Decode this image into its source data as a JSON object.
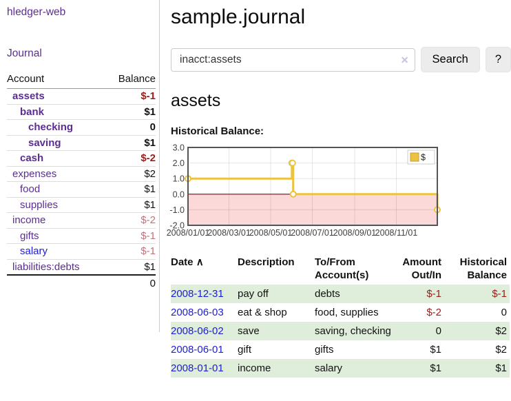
{
  "app": {
    "title": "hledger-web"
  },
  "sidebar": {
    "journal_link": "Journal",
    "table": {
      "headers": {
        "account": "Account",
        "balance": "Balance"
      },
      "accounts": [
        {
          "name": "assets",
          "indent": 1,
          "bold": true,
          "balance": "$-1",
          "balance_style": "neg"
        },
        {
          "name": "bank",
          "indent": 2,
          "bold": true,
          "balance": "$1",
          "balance_style": "plain"
        },
        {
          "name": "checking",
          "indent": 3,
          "bold": true,
          "balance": "0",
          "balance_style": "plain"
        },
        {
          "name": "saving",
          "indent": 3,
          "bold": true,
          "balance": "$1",
          "balance_style": "plain"
        },
        {
          "name": "cash",
          "indent": 2,
          "bold": true,
          "balance": "$-2",
          "balance_style": "neg"
        },
        {
          "name": "expenses",
          "indent": 1,
          "bold": false,
          "balance": "$2",
          "balance_style": "plain"
        },
        {
          "name": "food",
          "indent": 2,
          "bold": false,
          "balance": "$1",
          "balance_style": "plain"
        },
        {
          "name": "supplies",
          "indent": 2,
          "bold": false,
          "balance": "$1",
          "balance_style": "plain"
        },
        {
          "name": "income",
          "indent": 1,
          "bold": false,
          "balance": "$-2",
          "balance_style": "softneg"
        },
        {
          "name": "gifts",
          "indent": 2,
          "bold": false,
          "balance": "$-1",
          "balance_style": "softneg"
        },
        {
          "name": "salary",
          "indent": 2,
          "bold": false,
          "blue": true,
          "balance": "$-1",
          "balance_style": "softneg"
        },
        {
          "name": "liabilities:debts",
          "indent": 1,
          "bold": false,
          "balance": "$1",
          "balance_style": "plain"
        }
      ],
      "total": "0"
    }
  },
  "main": {
    "title": "sample.journal",
    "search": {
      "value": "inacct:assets",
      "clear_icon": "✕",
      "button": "Search",
      "help_button": "?"
    },
    "account_heading": "assets",
    "chart_heading": "Historical Balance:"
  },
  "chart_data": {
    "type": "line",
    "step": true,
    "title": "Historical Balance:",
    "series": [
      {
        "name": "$",
        "color": "#edc240",
        "points": [
          [
            "2008-01-01",
            1
          ],
          [
            "2008-06-01",
            2
          ],
          [
            "2008-06-02",
            2
          ],
          [
            "2008-06-03",
            0
          ],
          [
            "2008-12-31",
            -1
          ]
        ]
      }
    ],
    "x_ticks": [
      "2008/01/01",
      "2008/03/01",
      "2008/05/01",
      "2008/07/01",
      "2008/09/01",
      "2008/11/01"
    ],
    "y_ticks": [
      3.0,
      2.0,
      1.0,
      0.0,
      -1.0,
      -2.0
    ],
    "xlim": [
      "2008-01-01",
      "2008-12-31"
    ],
    "ylim": [
      -2,
      3
    ],
    "grid": true,
    "legend_position": "top-right",
    "negative_region_color": "#fbd9d9",
    "zero_line_color": "#8b0000",
    "border_color": "#545454",
    "axis_text_color": "#3f3f3f"
  },
  "register": {
    "headers": {
      "date": "Date",
      "sort_icon": "∧",
      "description": "Description",
      "accounts_l1": "To/From",
      "accounts_l2": "Account(s)",
      "amount_l1": "Amount",
      "amount_l2": "Out/In",
      "balance_l1": "Historical",
      "balance_l2": "Balance"
    },
    "rows": [
      {
        "date": "2008-12-31",
        "description": "pay off",
        "accounts": "debts",
        "amount": "$-1",
        "amount_neg": true,
        "balance": "$-1",
        "balance_neg": true,
        "green": true
      },
      {
        "date": "2008-06-03",
        "description": "eat & shop",
        "accounts": "food, supplies",
        "amount": "$-2",
        "amount_neg": true,
        "balance": "0",
        "balance_neg": false,
        "green": false
      },
      {
        "date": "2008-06-02",
        "description": "save",
        "accounts": "saving, checking",
        "amount": "0",
        "amount_neg": false,
        "balance": "$2",
        "balance_neg": false,
        "green": true
      },
      {
        "date": "2008-06-01",
        "description": "gift",
        "accounts": "gifts",
        "amount": "$1",
        "amount_neg": false,
        "balance": "$2",
        "balance_neg": false,
        "green": false
      },
      {
        "date": "2008-01-01",
        "description": "income",
        "accounts": "salary",
        "amount": "$1",
        "amount_neg": false,
        "balance": "$1",
        "balance_neg": false,
        "green": true
      }
    ]
  },
  "colors": {
    "link_purple": "#5c2d91",
    "link_blue": "#1c1cd2",
    "negative_strong": "#9a1c1c",
    "negative_soft": "#bf727a",
    "row_stripe_green": "#dfeeda",
    "series_yellow": "#edc240",
    "negative_region_pink": "#fbd9d9",
    "zero_line_red": "#8b0000"
  }
}
